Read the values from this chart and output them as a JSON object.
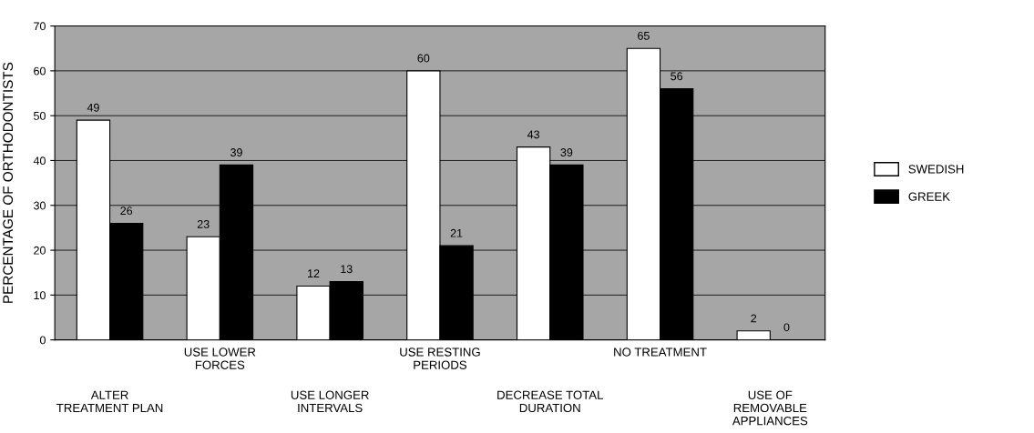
{
  "chart_data": {
    "type": "bar",
    "ylabel": "PERCENTAGE OF ORTHODONTISTS",
    "categories": [
      "ALTER\nTREATMENT PLAN",
      "USE LOWER\nFORCES",
      "USE LONGER\nINTERVALS",
      "USE RESTING\nPERIODS",
      "DECREASE TOTAL\nDURATION",
      "NO TREATMENT",
      "USE OF\nREMOVABLE\nAPPLIANCES"
    ],
    "series": [
      {
        "name": "SWEDISH",
        "color": "#ffffff",
        "values": [
          49,
          23,
          12,
          60,
          43,
          65,
          2
        ]
      },
      {
        "name": "GREEK",
        "color": "#000000",
        "values": [
          26,
          39,
          13,
          21,
          39,
          56,
          0
        ]
      }
    ],
    "ylim": [
      0,
      70
    ],
    "yticks": [
      0,
      10,
      20,
      30,
      40,
      50,
      60,
      70
    ],
    "grid": "y",
    "legend": "right",
    "data_labels": true
  }
}
